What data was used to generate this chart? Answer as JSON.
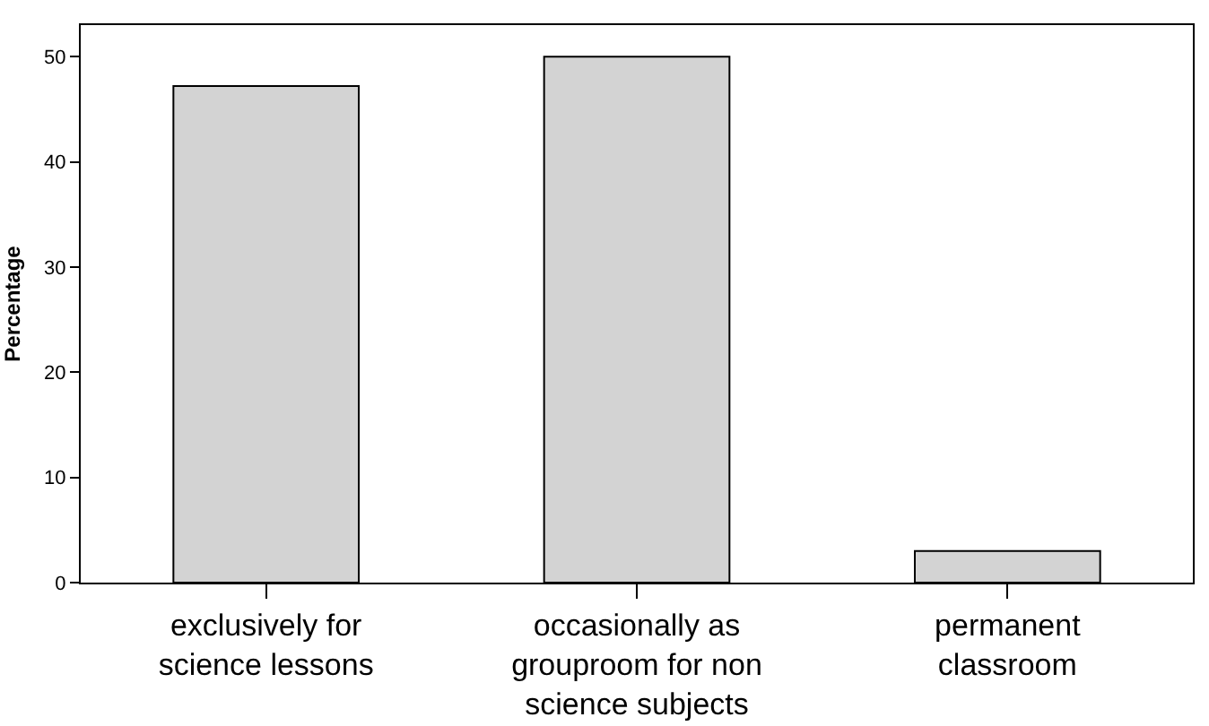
{
  "chart_data": {
    "type": "bar",
    "ylabel": "Percentage",
    "categories": [
      "exclusively for science lessons",
      "occasionally as grouproom for non science subjects",
      "permanent classroom"
    ],
    "values": [
      47.2,
      50,
      3
    ],
    "color": "#d3d3d3",
    "ylim": [
      0,
      53
    ],
    "yticks": [
      0,
      10,
      20,
      30,
      40,
      50
    ],
    "grid": false
  }
}
